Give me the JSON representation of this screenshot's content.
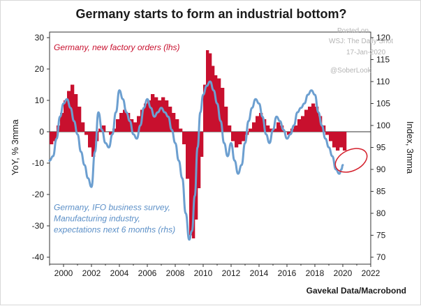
{
  "chart_data": {
    "type": "bar+line",
    "title": "Germany starts to form an industrial bottom?",
    "left_axis": {
      "label": "YoY, % 3mma",
      "range": [
        -40,
        30
      ],
      "ticks": [
        -40,
        -30,
        -20,
        -10,
        0,
        10,
        20,
        30
      ]
    },
    "right_axis": {
      "label": "Index, 3mma",
      "range": [
        70,
        120
      ],
      "ticks": [
        70,
        75,
        80,
        85,
        90,
        95,
        100,
        105,
        110,
        115,
        120
      ]
    },
    "x_axis": {
      "range": [
        1999,
        2022
      ],
      "ticks": [
        2000,
        2002,
        2004,
        2006,
        2008,
        2010,
        2012,
        2014,
        2016,
        2018,
        2020,
        2022
      ]
    },
    "series": [
      {
        "name": "Germany, new factory orders (lhs)",
        "type": "bar",
        "axis": "left",
        "color": "#c8102e",
        "points": [
          [
            1999.0,
            -4
          ],
          [
            1999.25,
            -3
          ],
          [
            1999.5,
            2
          ],
          [
            1999.75,
            6
          ],
          [
            2000.0,
            10
          ],
          [
            2000.25,
            13
          ],
          [
            2000.5,
            15
          ],
          [
            2000.75,
            12
          ],
          [
            2001.0,
            8
          ],
          [
            2001.25,
            3
          ],
          [
            2001.5,
            -1
          ],
          [
            2001.75,
            -5
          ],
          [
            2002.0,
            -8
          ],
          [
            2002.25,
            -3
          ],
          [
            2002.5,
            1
          ],
          [
            2002.75,
            2
          ],
          [
            2003.0,
            0
          ],
          [
            2003.25,
            -1
          ],
          [
            2003.5,
            1
          ],
          [
            2003.75,
            4
          ],
          [
            2004.0,
            6
          ],
          [
            2004.25,
            7
          ],
          [
            2004.5,
            6
          ],
          [
            2004.75,
            4
          ],
          [
            2005.0,
            3
          ],
          [
            2005.25,
            5
          ],
          [
            2005.5,
            7
          ],
          [
            2005.75,
            9
          ],
          [
            2006.0,
            10
          ],
          [
            2006.25,
            12
          ],
          [
            2006.5,
            11
          ],
          [
            2006.75,
            10
          ],
          [
            2007.0,
            11
          ],
          [
            2007.25,
            10
          ],
          [
            2007.5,
            8
          ],
          [
            2007.75,
            6
          ],
          [
            2008.0,
            4
          ],
          [
            2008.25,
            1
          ],
          [
            2008.5,
            -4
          ],
          [
            2008.75,
            -15
          ],
          [
            2009.0,
            -33
          ],
          [
            2009.2,
            -34
          ],
          [
            2009.4,
            -28
          ],
          [
            2009.6,
            -18
          ],
          [
            2009.8,
            -8
          ],
          [
            2010.0,
            15
          ],
          [
            2010.2,
            26
          ],
          [
            2010.4,
            25
          ],
          [
            2010.6,
            21
          ],
          [
            2010.8,
            18
          ],
          [
            2011.0,
            17
          ],
          [
            2011.25,
            14
          ],
          [
            2011.5,
            8
          ],
          [
            2011.75,
            2
          ],
          [
            2012.0,
            -3
          ],
          [
            2012.25,
            -5
          ],
          [
            2012.5,
            -4
          ],
          [
            2012.75,
            -3
          ],
          [
            2013.0,
            -1
          ],
          [
            2013.25,
            1
          ],
          [
            2013.5,
            3
          ],
          [
            2013.75,
            5
          ],
          [
            2014.0,
            6
          ],
          [
            2014.25,
            4
          ],
          [
            2014.5,
            2
          ],
          [
            2014.75,
            1
          ],
          [
            2015.0,
            1
          ],
          [
            2015.25,
            3
          ],
          [
            2015.5,
            2
          ],
          [
            2015.75,
            0
          ],
          [
            2016.0,
            -1
          ],
          [
            2016.25,
            1
          ],
          [
            2016.5,
            2
          ],
          [
            2016.75,
            4
          ],
          [
            2017.0,
            5
          ],
          [
            2017.25,
            7
          ],
          [
            2017.5,
            8
          ],
          [
            2017.75,
            9
          ],
          [
            2018.0,
            8
          ],
          [
            2018.25,
            5
          ],
          [
            2018.5,
            2
          ],
          [
            2018.75,
            -1
          ],
          [
            2019.0,
            -3
          ],
          [
            2019.25,
            -5
          ],
          [
            2019.5,
            -6
          ],
          [
            2019.75,
            -5
          ],
          [
            2020.0,
            -6
          ]
        ]
      },
      {
        "name": "Germany, IFO business survey, Manufacturing industry, expectations next 6 months (rhs)",
        "type": "line",
        "axis": "right",
        "color": "#6c9fd0",
        "points": [
          [
            1999.0,
            92
          ],
          [
            1999.25,
            93
          ],
          [
            1999.5,
            97
          ],
          [
            1999.75,
            102
          ],
          [
            2000.0,
            105
          ],
          [
            2000.25,
            106
          ],
          [
            2000.5,
            104
          ],
          [
            2000.75,
            101
          ],
          [
            2001.0,
            98
          ],
          [
            2001.25,
            94
          ],
          [
            2001.5,
            91
          ],
          [
            2001.75,
            88
          ],
          [
            2002.0,
            86
          ],
          [
            2002.25,
            94
          ],
          [
            2002.5,
            103
          ],
          [
            2002.75,
            99
          ],
          [
            2003.0,
            96
          ],
          [
            2003.25,
            95
          ],
          [
            2003.5,
            98
          ],
          [
            2003.75,
            103
          ],
          [
            2004.0,
            108
          ],
          [
            2004.25,
            106
          ],
          [
            2004.5,
            103
          ],
          [
            2004.75,
            101
          ],
          [
            2005.0,
            98
          ],
          [
            2005.25,
            97
          ],
          [
            2005.5,
            100
          ],
          [
            2005.75,
            104
          ],
          [
            2006.0,
            106
          ],
          [
            2006.25,
            104
          ],
          [
            2006.5,
            102
          ],
          [
            2006.75,
            103
          ],
          [
            2007.0,
            104
          ],
          [
            2007.25,
            103
          ],
          [
            2007.5,
            102
          ],
          [
            2007.75,
            99
          ],
          [
            2008.0,
            96
          ],
          [
            2008.25,
            92
          ],
          [
            2008.5,
            88
          ],
          [
            2008.75,
            80
          ],
          [
            2009.0,
            74
          ],
          [
            2009.2,
            76
          ],
          [
            2009.4,
            84
          ],
          [
            2009.6,
            95
          ],
          [
            2009.8,
            103
          ],
          [
            2010.0,
            107
          ],
          [
            2010.25,
            109
          ],
          [
            2010.5,
            110
          ],
          [
            2010.75,
            108
          ],
          [
            2011.0,
            105
          ],
          [
            2011.25,
            101
          ],
          [
            2011.5,
            96
          ],
          [
            2011.75,
            93
          ],
          [
            2012.0,
            96
          ],
          [
            2012.25,
            92
          ],
          [
            2012.5,
            89
          ],
          [
            2012.75,
            91
          ],
          [
            2013.0,
            96
          ],
          [
            2013.25,
            101
          ],
          [
            2013.5,
            104
          ],
          [
            2013.75,
            106
          ],
          [
            2014.0,
            105
          ],
          [
            2014.25,
            102
          ],
          [
            2014.5,
            98
          ],
          [
            2014.75,
            96
          ],
          [
            2015.0,
            99
          ],
          [
            2015.25,
            102
          ],
          [
            2015.5,
            101
          ],
          [
            2015.75,
            99
          ],
          [
            2016.0,
            97
          ],
          [
            2016.25,
            98
          ],
          [
            2016.5,
            100
          ],
          [
            2016.75,
            103
          ],
          [
            2017.0,
            104
          ],
          [
            2017.25,
            105
          ],
          [
            2017.5,
            107
          ],
          [
            2017.75,
            108
          ],
          [
            2018.0,
            107
          ],
          [
            2018.25,
            103
          ],
          [
            2018.5,
            100
          ],
          [
            2018.75,
            97
          ],
          [
            2019.0,
            95
          ],
          [
            2019.25,
            93
          ],
          [
            2019.5,
            90
          ],
          [
            2019.75,
            89
          ],
          [
            2019.9,
            90
          ],
          [
            2020.0,
            91
          ]
        ]
      }
    ],
    "annotations": [
      {
        "text_lines": [
          "Germany, new factory orders (lhs)"
        ],
        "color": "#c8102e",
        "at": [
          1999.3,
          26
        ]
      },
      {
        "text_lines": [
          "Germany, IFO business survey,",
          "Manufacturing industry,",
          "expectations next 6 months (rhs)"
        ],
        "color": "#5b8fc7",
        "at": [
          1999.3,
          -25
        ]
      }
    ],
    "highlight": {
      "shape": "ellipse",
      "color": "#d4202c",
      "center": [
        2020.2,
        -10
      ],
      "note": "circled bottom"
    }
  },
  "source": "Gavekal Data/Macrobond",
  "watermark": [
    "Posted on",
    "WSJ: The Daily Shot",
    "17-Jan-2020",
    "@SoberLook"
  ]
}
